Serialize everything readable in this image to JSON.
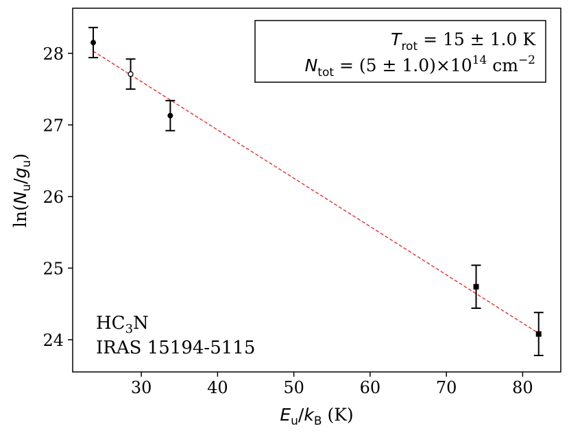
{
  "chart_data": {
    "type": "scatter",
    "xlabel": {
      "E": "E",
      "u": "u",
      "slash": "/",
      "k": "k",
      "B": "B",
      "unit": " (K)"
    },
    "ylabel": {
      "pre": "ln(",
      "N": "N",
      "u": "u",
      "slash": "/",
      "g": "g",
      "u2": "u",
      "post": ")"
    },
    "xlim": [
      21,
      85
    ],
    "ylim": [
      23.55,
      28.63
    ],
    "xticks": [
      30,
      40,
      50,
      60,
      70,
      80
    ],
    "yticks": [
      24,
      25,
      26,
      27,
      28
    ],
    "grid": false,
    "points": [
      {
        "x": 23.7,
        "y": 28.15,
        "err": 0.21,
        "marker": "circle-filled"
      },
      {
        "x": 28.6,
        "y": 27.71,
        "err": 0.21,
        "marker": "circle-open"
      },
      {
        "x": 33.8,
        "y": 27.13,
        "err": 0.21,
        "marker": "circle-filled"
      },
      {
        "x": 73.9,
        "y": 24.74,
        "err": 0.3,
        "marker": "square-filled"
      },
      {
        "x": 82.1,
        "y": 24.08,
        "err": 0.3,
        "marker": "square-filled"
      }
    ],
    "fit": {
      "x": [
        23.7,
        82.1
      ],
      "y": [
        28.03,
        24.09
      ],
      "color": "#e8201e",
      "style": "dashed"
    },
    "annotation_box": {
      "line1": {
        "T": "T",
        "sub": "rot",
        "rest": " = 15 ± 1.0 K"
      },
      "line2": {
        "N": "N",
        "sub": "tot",
        "rest": " = (5 ± 1.0)×10",
        "exp": "14",
        "unit": " cm",
        "unit_exp": "−2"
      },
      "placement": "top-right"
    },
    "label": {
      "molecule": {
        "base": "HC",
        "sub": "3",
        "tail": "N"
      },
      "source": "IRAS 15194-5115",
      "placement": "bottom-left"
    },
    "colors": {
      "axis": "#000000",
      "fit": "#e8201e",
      "points": "#000000"
    }
  }
}
